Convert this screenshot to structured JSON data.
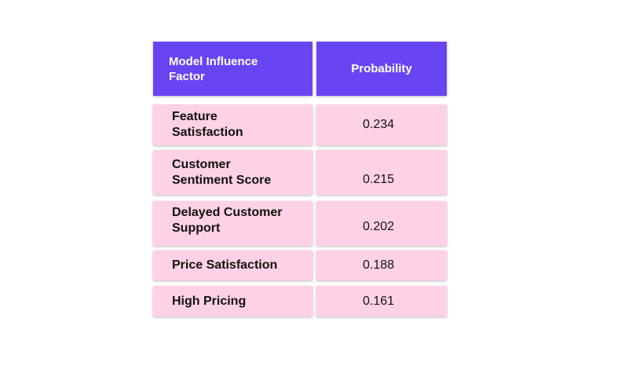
{
  "table": {
    "headers": {
      "factor": "Model Influence Factor",
      "probability": "Probability"
    },
    "rows": [
      {
        "factor": "Feature Satisfaction",
        "probability": "0.234"
      },
      {
        "factor": "Customer Sentiment Score",
        "probability": "0.215"
      },
      {
        "factor": "Delayed Customer Support",
        "probability": "0.202"
      },
      {
        "factor": "Price Satisfaction",
        "probability": "0.188"
      },
      {
        "factor": "High Pricing",
        "probability": "0.161"
      }
    ]
  },
  "colors": {
    "header_bg": "#6944f3",
    "row_bg": "#ffd1e6",
    "header_text": "#ffffff",
    "row_text": "#111111"
  }
}
